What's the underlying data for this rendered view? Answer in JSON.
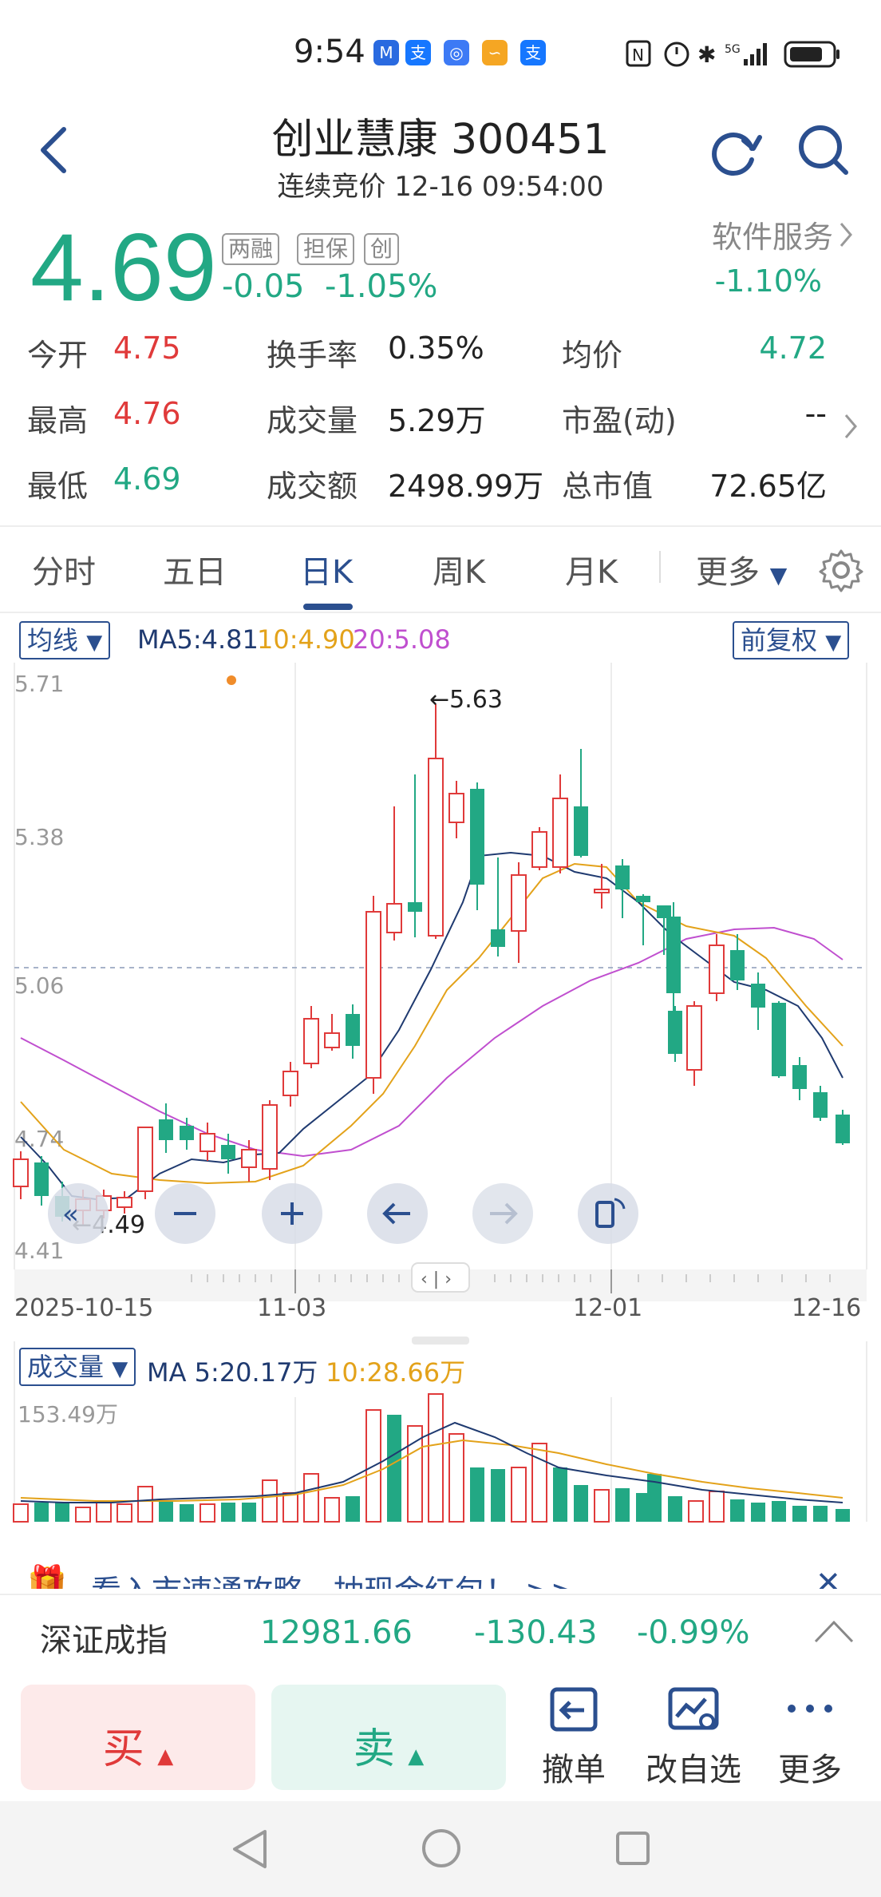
{
  "status_bar": {
    "time": "9:54",
    "network": "5G"
  },
  "header": {
    "title": "创业慧康 300451",
    "subtitle": "连续竞价 12-16 09:54:00"
  },
  "quote": {
    "price": "4.69",
    "tags": [
      "两融",
      "担保",
      "创"
    ],
    "change": "-0.05",
    "change_pct": "-1.05%",
    "sector_name": "软件服务",
    "sector_chg": "-1.10%"
  },
  "stats": [
    [
      {
        "label": "今开",
        "value": "4.75",
        "tone": "up"
      },
      {
        "label": "换手率",
        "value": "0.35%",
        "tone": "neutral"
      },
      {
        "label": "均价",
        "value": "4.72",
        "tone": "down"
      }
    ],
    [
      {
        "label": "最高",
        "value": "4.76",
        "tone": "up"
      },
      {
        "label": "成交量",
        "value": "5.29万",
        "tone": "neutral"
      },
      {
        "label": "市盈(动)",
        "value": "--",
        "tone": "neutral"
      }
    ],
    [
      {
        "label": "最低",
        "value": "4.69",
        "tone": "down"
      },
      {
        "label": "成交额",
        "value": "2498.99万",
        "tone": "neutral"
      },
      {
        "label": "总市值",
        "value": "72.65亿",
        "tone": "neutral"
      }
    ]
  ],
  "tabs": [
    "分时",
    "五日",
    "日K",
    "周K",
    "月K",
    "更多"
  ],
  "active_tab": "日K",
  "kline": {
    "ma_selector": "均线",
    "ma5": "MA5:4.81",
    "ma10": "10:4.90",
    "ma20": "20:5.08",
    "adjust": "前复权",
    "y_labels": [
      "5.71",
      "5.38",
      "5.06",
      "4.74",
      "4.41"
    ],
    "high_marker": "←5.63",
    "low_marker": "←4.49",
    "dates": [
      "2025-10-15",
      "11-03",
      "12-01",
      "12-16"
    ]
  },
  "volume": {
    "selector": "成交量",
    "ma5": "MA 5:20.17万",
    "ma10": "10:28.66万",
    "max_label": "153.49万"
  },
  "promo": {
    "text": "看入市速通攻略，抽现金红包！ >>"
  },
  "index": {
    "name": "深证成指",
    "value": "12981.66",
    "change": "-130.43",
    "change_pct": "-0.99%"
  },
  "actions": {
    "buy": "买",
    "sell": "卖",
    "cancel": "撤单",
    "edit_watch": "改自选",
    "more": "更多"
  },
  "colors": {
    "up": "#e03a3a",
    "down": "#22a884",
    "accent": "#2b4f8f",
    "ma5": "#1f3a70",
    "ma10": "#e3a21a",
    "ma20": "#c04fcf"
  }
}
